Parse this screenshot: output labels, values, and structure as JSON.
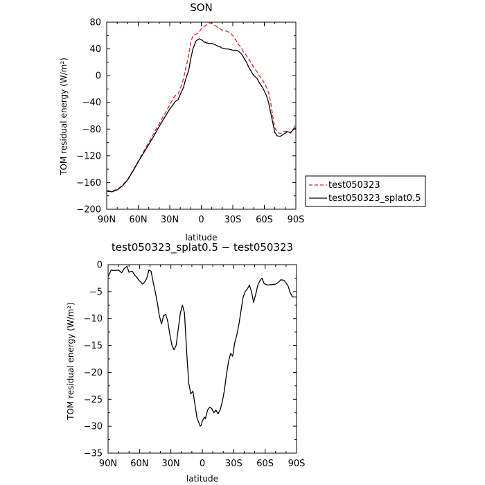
{
  "chart_data": [
    {
      "type": "line",
      "title": "SON",
      "xlabel": "latitude",
      "ylabel": "TOM residual energy (W/m²)",
      "xlim": [
        -90,
        90
      ],
      "ylim": [
        -200,
        80
      ],
      "yticks": [
        -200,
        -160,
        -120,
        -80,
        -40,
        0,
        40,
        80
      ],
      "xticks": [
        -90,
        -60,
        -30,
        0,
        30,
        60,
        90
      ],
      "xtick_labels": [
        "90N",
        "60N",
        "30N",
        "0",
        "30S",
        "60S",
        "90S"
      ],
      "series": [
        {
          "name": "test050323",
          "color": "#e02020",
          "dash": "dashed",
          "x": [
            -90,
            -85,
            -80,
            -75,
            -70,
            -65,
            -60,
            -55,
            -50,
            -45,
            -40,
            -35,
            -30,
            -27,
            -25,
            -22,
            -20,
            -17,
            -15,
            -12,
            -10,
            -8,
            -5,
            -2,
            0,
            3,
            5,
            8,
            10,
            12,
            15,
            18,
            20,
            23,
            25,
            28,
            30,
            33,
            35,
            38,
            40,
            43,
            45,
            48,
            50,
            53,
            55,
            58,
            60,
            62,
            64,
            66,
            68,
            70,
            72,
            75,
            78,
            80,
            82,
            85,
            87,
            90
          ],
          "y": [
            -172,
            -173,
            -170,
            -164,
            -155,
            -142,
            -128,
            -114,
            -100,
            -86,
            -72,
            -58,
            -44,
            -35,
            -30,
            -27,
            -20,
            -5,
            10,
            30,
            50,
            60,
            62,
            65,
            70,
            74,
            76,
            79,
            78,
            76,
            73,
            70,
            68,
            67,
            66,
            63,
            60,
            53,
            47,
            42,
            36,
            30,
            25,
            18,
            12,
            6,
            0,
            -5,
            -12,
            -17,
            -25,
            -40,
            -60,
            -78,
            -84,
            -87,
            -84,
            -83,
            -84,
            -86,
            -82,
            -72
          ]
        },
        {
          "name": "test050323_splat0.5",
          "color": "#000000",
          "dash": "solid",
          "x": [
            -90,
            -85,
            -80,
            -75,
            -70,
            -65,
            -60,
            -55,
            -50,
            -45,
            -40,
            -35,
            -30,
            -27,
            -25,
            -22,
            -20,
            -17,
            -15,
            -12,
            -10,
            -8,
            -5,
            -2,
            0,
            3,
            5,
            8,
            10,
            12,
            15,
            18,
            20,
            23,
            25,
            28,
            30,
            33,
            35,
            38,
            40,
            43,
            45,
            48,
            50,
            53,
            55,
            58,
            60,
            62,
            64,
            66,
            68,
            70,
            72,
            75,
            78,
            80,
            82,
            85,
            87,
            90
          ],
          "y": [
            -173,
            -174,
            -171,
            -165,
            -156,
            -143,
            -129,
            -116,
            -103,
            -90,
            -76,
            -63,
            -50,
            -44,
            -39,
            -36,
            -28,
            -18,
            -6,
            8,
            25,
            40,
            52,
            55,
            54,
            50,
            49,
            48,
            48,
            47,
            45,
            43,
            41,
            40,
            40,
            39,
            38,
            38,
            37,
            33,
            28,
            20,
            13,
            5,
            0,
            -4,
            -10,
            -17,
            -23,
            -30,
            -40,
            -55,
            -70,
            -85,
            -90,
            -91,
            -88,
            -86,
            -84,
            -85,
            -82,
            -78
          ]
        }
      ],
      "legend": {
        "placement": "right",
        "entries": [
          "test050323",
          "test050323_splat0.5"
        ]
      }
    },
    {
      "type": "line",
      "title": "test050323_splat0.5 − test050323",
      "xlabel": "latitude",
      "ylabel": "TOM residual energy (W/m²)",
      "xlim": [
        -90,
        90
      ],
      "ylim": [
        -35,
        0
      ],
      "yticks": [
        -35,
        -30,
        -25,
        -20,
        -15,
        -10,
        -5,
        0
      ],
      "xticks": [
        -90,
        -60,
        -30,
        0,
        30,
        60,
        90
      ],
      "xtick_labels": [
        "90N",
        "60N",
        "30N",
        "0",
        "30S",
        "60S",
        "90S"
      ],
      "series": [
        {
          "name": "",
          "color": "#000000",
          "dash": "solid",
          "x": [
            -90,
            -87,
            -85,
            -80,
            -77,
            -75,
            -72,
            -70,
            -67,
            -65,
            -62,
            -60,
            -57,
            -55,
            -53,
            -51,
            -49,
            -47,
            -45,
            -43,
            -41,
            -39,
            -37,
            -35,
            -33,
            -31,
            -29,
            -27,
            -25,
            -23,
            -21,
            -19,
            -17,
            -15,
            -13,
            -11,
            -9,
            -7,
            -5,
            -3,
            -2,
            -1,
            0,
            1,
            2,
            3,
            5,
            7,
            9,
            11,
            13,
            15,
            17,
            19,
            21,
            23,
            25,
            27,
            29,
            31,
            33,
            35,
            37,
            39,
            41,
            43,
            45,
            47,
            49,
            51,
            53,
            55,
            57,
            59,
            61,
            63,
            65,
            67,
            70,
            73,
            75,
            78,
            80,
            82,
            84,
            86,
            88,
            90
          ],
          "y": [
            -2.2,
            -1.0,
            -1.1,
            -1.0,
            -1.5,
            -0.8,
            -0.3,
            -1.4,
            -1.2,
            -1.8,
            -2.5,
            -3.0,
            -3.6,
            -3.2,
            -2.5,
            -1.0,
            -1.2,
            -3.2,
            -5.0,
            -7.0,
            -9.5,
            -11.0,
            -9.5,
            -9.2,
            -10.5,
            -13.0,
            -15.0,
            -15.8,
            -15.0,
            -12.0,
            -9.0,
            -7.5,
            -9.0,
            -16.0,
            -22.0,
            -24.0,
            -23.5,
            -26.0,
            -28.5,
            -29.5,
            -30.0,
            -29.8,
            -29.0,
            -28.7,
            -28.3,
            -28.6,
            -27.0,
            -26.5,
            -26.7,
            -27.5,
            -27.0,
            -27.7,
            -27.0,
            -25.5,
            -23.5,
            -20.5,
            -18.0,
            -16.5,
            -17.0,
            -14.5,
            -13.0,
            -11.0,
            -8.5,
            -6.0,
            -5.0,
            -4.5,
            -3.8,
            -5.0,
            -7.0,
            -5.5,
            -3.8,
            -3.0,
            -2.5,
            -3.5,
            -3.7,
            -3.8,
            -3.7,
            -3.7,
            -3.6,
            -3.2,
            -2.8,
            -2.9,
            -3.4,
            -4.0,
            -5.2,
            -6.0,
            -6.0,
            -6.0
          ]
        }
      ]
    }
  ]
}
